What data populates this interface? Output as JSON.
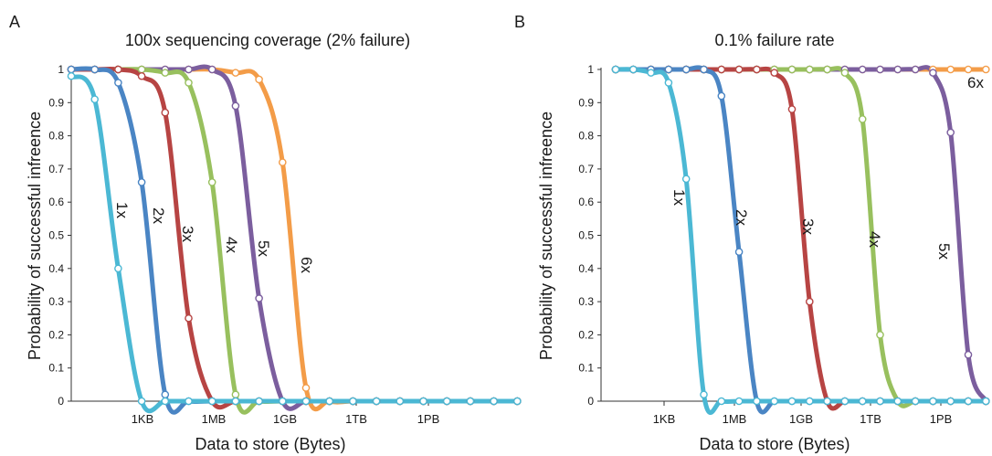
{
  "chart_data": [
    {
      "type": "line",
      "panel_label": "A",
      "title": "100x sequencing coverage (2% failure)",
      "xlabel": "Data to store (Bytes)",
      "ylabel": "Probability of successful infreence",
      "x_tick_labels": [
        "1KB",
        "1MB",
        "1GB",
        "1TB",
        "1PB"
      ],
      "y_tick_labels": [
        "0",
        "0.1",
        "0.2",
        "0.3",
        "0.4",
        "0.5",
        "0.6",
        "0.7",
        "0.8",
        "0.9",
        "1"
      ],
      "ylim": [
        0,
        1
      ],
      "grid": false,
      "series": [
        {
          "name": "1x",
          "color": "#4bb8d4",
          "x": [
            1,
            2,
            3,
            4,
            5,
            6,
            7,
            8,
            9,
            10,
            11,
            12,
            13,
            14,
            15,
            16,
            17,
            18,
            19,
            20
          ],
          "y": [
            0.98,
            0.91,
            0.4,
            0,
            0,
            0,
            0,
            0,
            0,
            0,
            0,
            0,
            0,
            0,
            0,
            0,
            0,
            0,
            0,
            0
          ]
        },
        {
          "name": "2x",
          "color": "#4a85c4",
          "x": [
            1,
            2,
            3,
            4,
            5,
            6,
            7,
            8,
            9,
            10,
            11,
            12,
            13,
            14,
            15,
            16,
            17,
            18,
            19,
            20
          ],
          "y": [
            1,
            1,
            0.96,
            0.66,
            0.02,
            0,
            0,
            0,
            0,
            0,
            0,
            0,
            0,
            0,
            0,
            0,
            0,
            0,
            0,
            0
          ]
        },
        {
          "name": "3x",
          "color": "#b74443",
          "x": [
            1,
            2,
            3,
            4,
            5,
            6,
            7,
            8,
            9,
            10,
            11,
            12,
            13,
            14,
            15,
            16,
            17,
            18,
            19,
            20
          ],
          "y": [
            1,
            1,
            1,
            0.98,
            0.87,
            0.25,
            0,
            0,
            0,
            0,
            0,
            0,
            0,
            0,
            0,
            0,
            0,
            0,
            0,
            0
          ]
        },
        {
          "name": "4x",
          "color": "#98c05e",
          "x": [
            1,
            2,
            3,
            4,
            5,
            6,
            7,
            8,
            9,
            10,
            11,
            12,
            13,
            14,
            15,
            16,
            17,
            18,
            19,
            20
          ],
          "y": [
            1,
            1,
            1,
            1,
            0.99,
            0.96,
            0.66,
            0.02,
            0,
            0,
            0,
            0,
            0,
            0,
            0,
            0,
            0,
            0,
            0,
            0
          ]
        },
        {
          "name": "5x",
          "color": "#7b5e9e",
          "x": [
            1,
            2,
            3,
            4,
            5,
            6,
            7,
            8,
            9,
            10,
            11,
            12,
            13,
            14,
            15,
            16,
            17,
            18,
            19,
            20
          ],
          "y": [
            1,
            1,
            1,
            1,
            1,
            1,
            1,
            0.89,
            0.31,
            0,
            0,
            0,
            0,
            0,
            0,
            0,
            0,
            0,
            0,
            0
          ]
        },
        {
          "name": "6x",
          "color": "#f39c48",
          "x": [
            1,
            2,
            3,
            4,
            5,
            6,
            7,
            8,
            9,
            10,
            11,
            12,
            13,
            14,
            15,
            16,
            17,
            18,
            19,
            20
          ],
          "y": [
            1,
            1,
            1,
            1,
            1,
            1,
            1,
            0.99,
            0.97,
            0.72,
            0.04,
            0,
            0,
            0,
            0,
            0,
            0,
            0,
            0,
            0
          ]
        }
      ]
    },
    {
      "type": "line",
      "panel_label": "B",
      "title": "0.1% failure rate",
      "xlabel": "Data to store (Bytes)",
      "ylabel": "Probability of successful infreence",
      "x_tick_labels": [
        "1KB",
        "1MB",
        "1GB",
        "1TB",
        "1PB"
      ],
      "y_tick_labels": [
        "0",
        "0.1",
        "0.2",
        "0.3",
        "0.4",
        "0.5",
        "0.6",
        "0.7",
        "0.8",
        "0.9",
        "1"
      ],
      "ylim": [
        0,
        1
      ],
      "grid": false,
      "series": [
        {
          "name": "1x",
          "color": "#4bb8d4",
          "x": [
            1,
            2,
            3,
            4,
            5,
            6,
            7,
            8,
            9,
            10,
            11,
            12,
            13,
            14,
            15,
            16,
            17,
            18,
            19,
            20,
            21,
            22
          ],
          "y": [
            1,
            1,
            0.99,
            0.96,
            0.67,
            0.02,
            0,
            0,
            0,
            0,
            0,
            0,
            0,
            0,
            0,
            0,
            0,
            0,
            0,
            0,
            0,
            0
          ]
        },
        {
          "name": "2x",
          "color": "#4a85c4",
          "x": [
            1,
            2,
            3,
            4,
            5,
            6,
            7,
            8,
            9,
            10,
            11,
            12,
            13,
            14,
            15,
            16,
            17,
            18,
            19,
            20,
            21,
            22
          ],
          "y": [
            1,
            1,
            1,
            1,
            1,
            1,
            0.92,
            0.45,
            0,
            0,
            0,
            0,
            0,
            0,
            0,
            0,
            0,
            0,
            0,
            0,
            0,
            0
          ]
        },
        {
          "name": "3x",
          "color": "#b74443",
          "x": [
            1,
            2,
            3,
            4,
            5,
            6,
            7,
            8,
            9,
            10,
            11,
            12,
            13,
            14,
            15,
            16,
            17,
            18,
            19,
            20,
            21,
            22
          ],
          "y": [
            1,
            1,
            1,
            1,
            1,
            1,
            1,
            1,
            1,
            0.99,
            0.88,
            0.3,
            0,
            0,
            0,
            0,
            0,
            0,
            0,
            0,
            0,
            0
          ]
        },
        {
          "name": "4x",
          "color": "#98c05e",
          "x": [
            1,
            2,
            3,
            4,
            5,
            6,
            7,
            8,
            9,
            10,
            11,
            12,
            13,
            14,
            15,
            16,
            17,
            18,
            19,
            20,
            21,
            22
          ],
          "y": [
            1,
            1,
            1,
            1,
            1,
            1,
            1,
            1,
            1,
            1,
            1,
            1,
            1,
            0.99,
            0.85,
            0.2,
            0,
            0,
            0,
            0,
            0,
            0
          ]
        },
        {
          "name": "5x",
          "color": "#7b5e9e",
          "x": [
            1,
            2,
            3,
            4,
            5,
            6,
            7,
            8,
            9,
            10,
            11,
            12,
            13,
            14,
            15,
            16,
            17,
            18,
            19,
            20,
            21,
            22
          ],
          "y": [
            1,
            1,
            1,
            1,
            1,
            1,
            1,
            1,
            1,
            1,
            1,
            1,
            1,
            1,
            1,
            1,
            1,
            1,
            0.99,
            0.81,
            0.14,
            0
          ]
        },
        {
          "name": "6x",
          "color": "#f39c48",
          "x": [
            1,
            2,
            3,
            4,
            5,
            6,
            7,
            8,
            9,
            10,
            11,
            12,
            13,
            14,
            15,
            16,
            17,
            18,
            19,
            20,
            21,
            22
          ],
          "y": [
            1,
            1,
            1,
            1,
            1,
            1,
            1,
            1,
            1,
            1,
            1,
            1,
            1,
            1,
            1,
            1,
            1,
            1,
            1,
            1,
            1,
            1
          ]
        }
      ]
    }
  ]
}
